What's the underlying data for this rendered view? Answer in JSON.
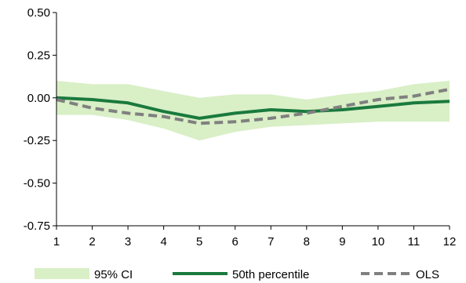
{
  "chart_data": {
    "type": "line",
    "x": [
      1,
      2,
      3,
      4,
      5,
      6,
      7,
      8,
      9,
      10,
      11,
      12
    ],
    "xticks": [
      "1",
      "2",
      "3",
      "4",
      "5",
      "6",
      "7",
      "8",
      "9",
      "10",
      "11",
      "12"
    ],
    "ylim": [
      -0.75,
      0.5
    ],
    "yticks": [
      "0.50",
      "0.25",
      "0.00",
      "-0.25",
      "-0.50",
      "-0.75"
    ],
    "ytick_values": [
      0.5,
      0.25,
      0.0,
      -0.25,
      -0.5,
      -0.75
    ],
    "band": {
      "name": "95% CI",
      "color": "#d9efc6",
      "upper": [
        0.1,
        0.08,
        0.08,
        0.04,
        0.0,
        0.02,
        0.02,
        -0.01,
        0.02,
        0.04,
        0.08,
        0.1
      ],
      "lower": [
        -0.1,
        -0.1,
        -0.13,
        -0.18,
        -0.25,
        -0.2,
        -0.17,
        -0.16,
        -0.15,
        -0.14,
        -0.14,
        -0.14
      ]
    },
    "series": [
      {
        "name": "50th percentile",
        "color": "#1a7a3e",
        "style": "solid",
        "values": [
          0.0,
          -0.01,
          -0.03,
          -0.08,
          -0.12,
          -0.09,
          -0.07,
          -0.08,
          -0.07,
          -0.05,
          -0.03,
          -0.02
        ]
      },
      {
        "name": "OLS",
        "color": "#808080",
        "style": "dashed",
        "values": [
          -0.01,
          -0.06,
          -0.09,
          -0.11,
          -0.15,
          -0.14,
          -0.12,
          -0.09,
          -0.05,
          -0.01,
          0.01,
          0.05
        ]
      }
    ],
    "grid": false,
    "legend_position": "bottom"
  }
}
